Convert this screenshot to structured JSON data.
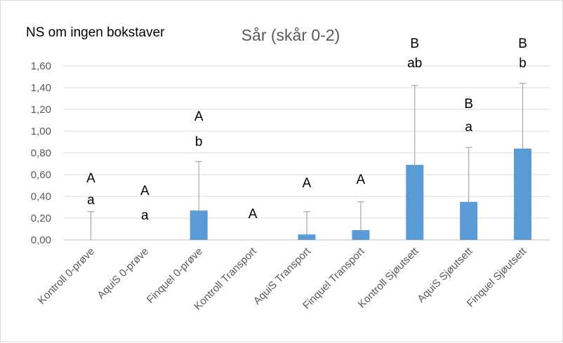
{
  "note": "NS om ingen bokstaver",
  "chart_data": {
    "type": "bar",
    "title": "Sår (skår 0-2)",
    "xlabel": "",
    "ylabel": "",
    "ylim": [
      0,
      1.6
    ],
    "yticks": [
      "0,00",
      "0,20",
      "0,40",
      "0,60",
      "0,80",
      "1,00",
      "1,20",
      "1,40",
      "1,60"
    ],
    "grid": true,
    "bar_color": "#5b9bd5",
    "categories": [
      "Kontroll 0-prøve",
      "AquiS 0-prøve",
      "Finquel 0-prøve",
      "Kontroll Transport",
      "AquiS Transport",
      "Finquel Transport",
      "Kontroll Sjøutsett",
      "AquiS Sjøutsett",
      "Finquel Sjøutsett"
    ],
    "values": [
      0,
      0,
      0.27,
      0,
      0.05,
      0.09,
      0.69,
      0.35,
      0.84
    ],
    "error_upper": [
      0.26,
      0,
      0.72,
      0,
      0.26,
      0.35,
      1.42,
      0.85,
      1.44
    ],
    "letters_upper": [
      "A",
      "A",
      "A",
      "A",
      "A",
      "A",
      "B",
      "B",
      "B"
    ],
    "letters_lower": [
      "a",
      "a",
      "b",
      "",
      "",
      "",
      "ab",
      "a",
      "b"
    ]
  }
}
